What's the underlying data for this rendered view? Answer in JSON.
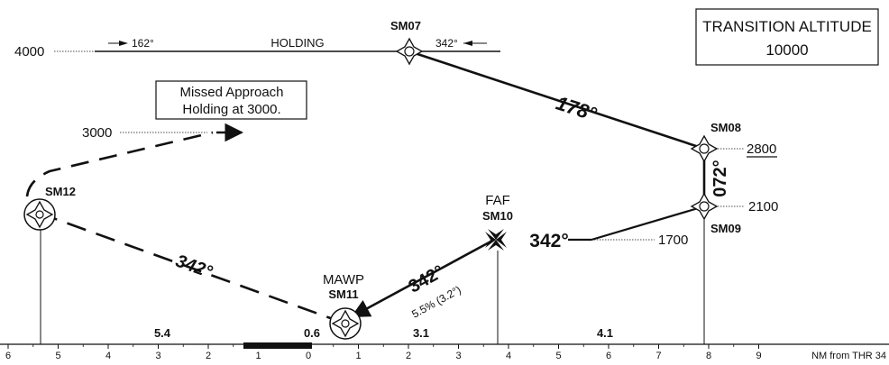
{
  "transition_box": {
    "line1": "TRANSITION ALTITUDE",
    "line2": "10000"
  },
  "missed_box": {
    "line1": "Missed Approach",
    "line2": "Holding at 3000."
  },
  "holding": {
    "label": "HOLDING",
    "altitude": "4000",
    "inbound_left": "162°",
    "inbound_right": "342°"
  },
  "fixes": {
    "sm07": "SM07",
    "sm08": "SM08",
    "sm09": "SM09",
    "sm10": "SM10",
    "sm11": "SM11",
    "sm12": "SM12",
    "faf": "FAF",
    "mawp": "MAWP"
  },
  "altitudes": {
    "sm08": "2800",
    "sm09": "2100",
    "fix1700": "1700",
    "missed": "3000"
  },
  "courses": {
    "sm07_sm08": "178°",
    "sm08_sm09": "072°",
    "sm09_sm10": "342°",
    "sm10_sm11": "342°",
    "sm11_sm12": "342°"
  },
  "gradient": "5.5% (3.2°)",
  "segment_distances": {
    "d1": "5.4",
    "d2": "0.6",
    "d3": "3.1",
    "d4": "4.1"
  },
  "scale": {
    "ticks": [
      "6",
      "5",
      "4",
      "3",
      "2",
      "1",
      "0",
      "1",
      "2",
      "3",
      "4",
      "5",
      "6",
      "7",
      "8",
      "9"
    ],
    "unit": "NM from THR 34"
  }
}
